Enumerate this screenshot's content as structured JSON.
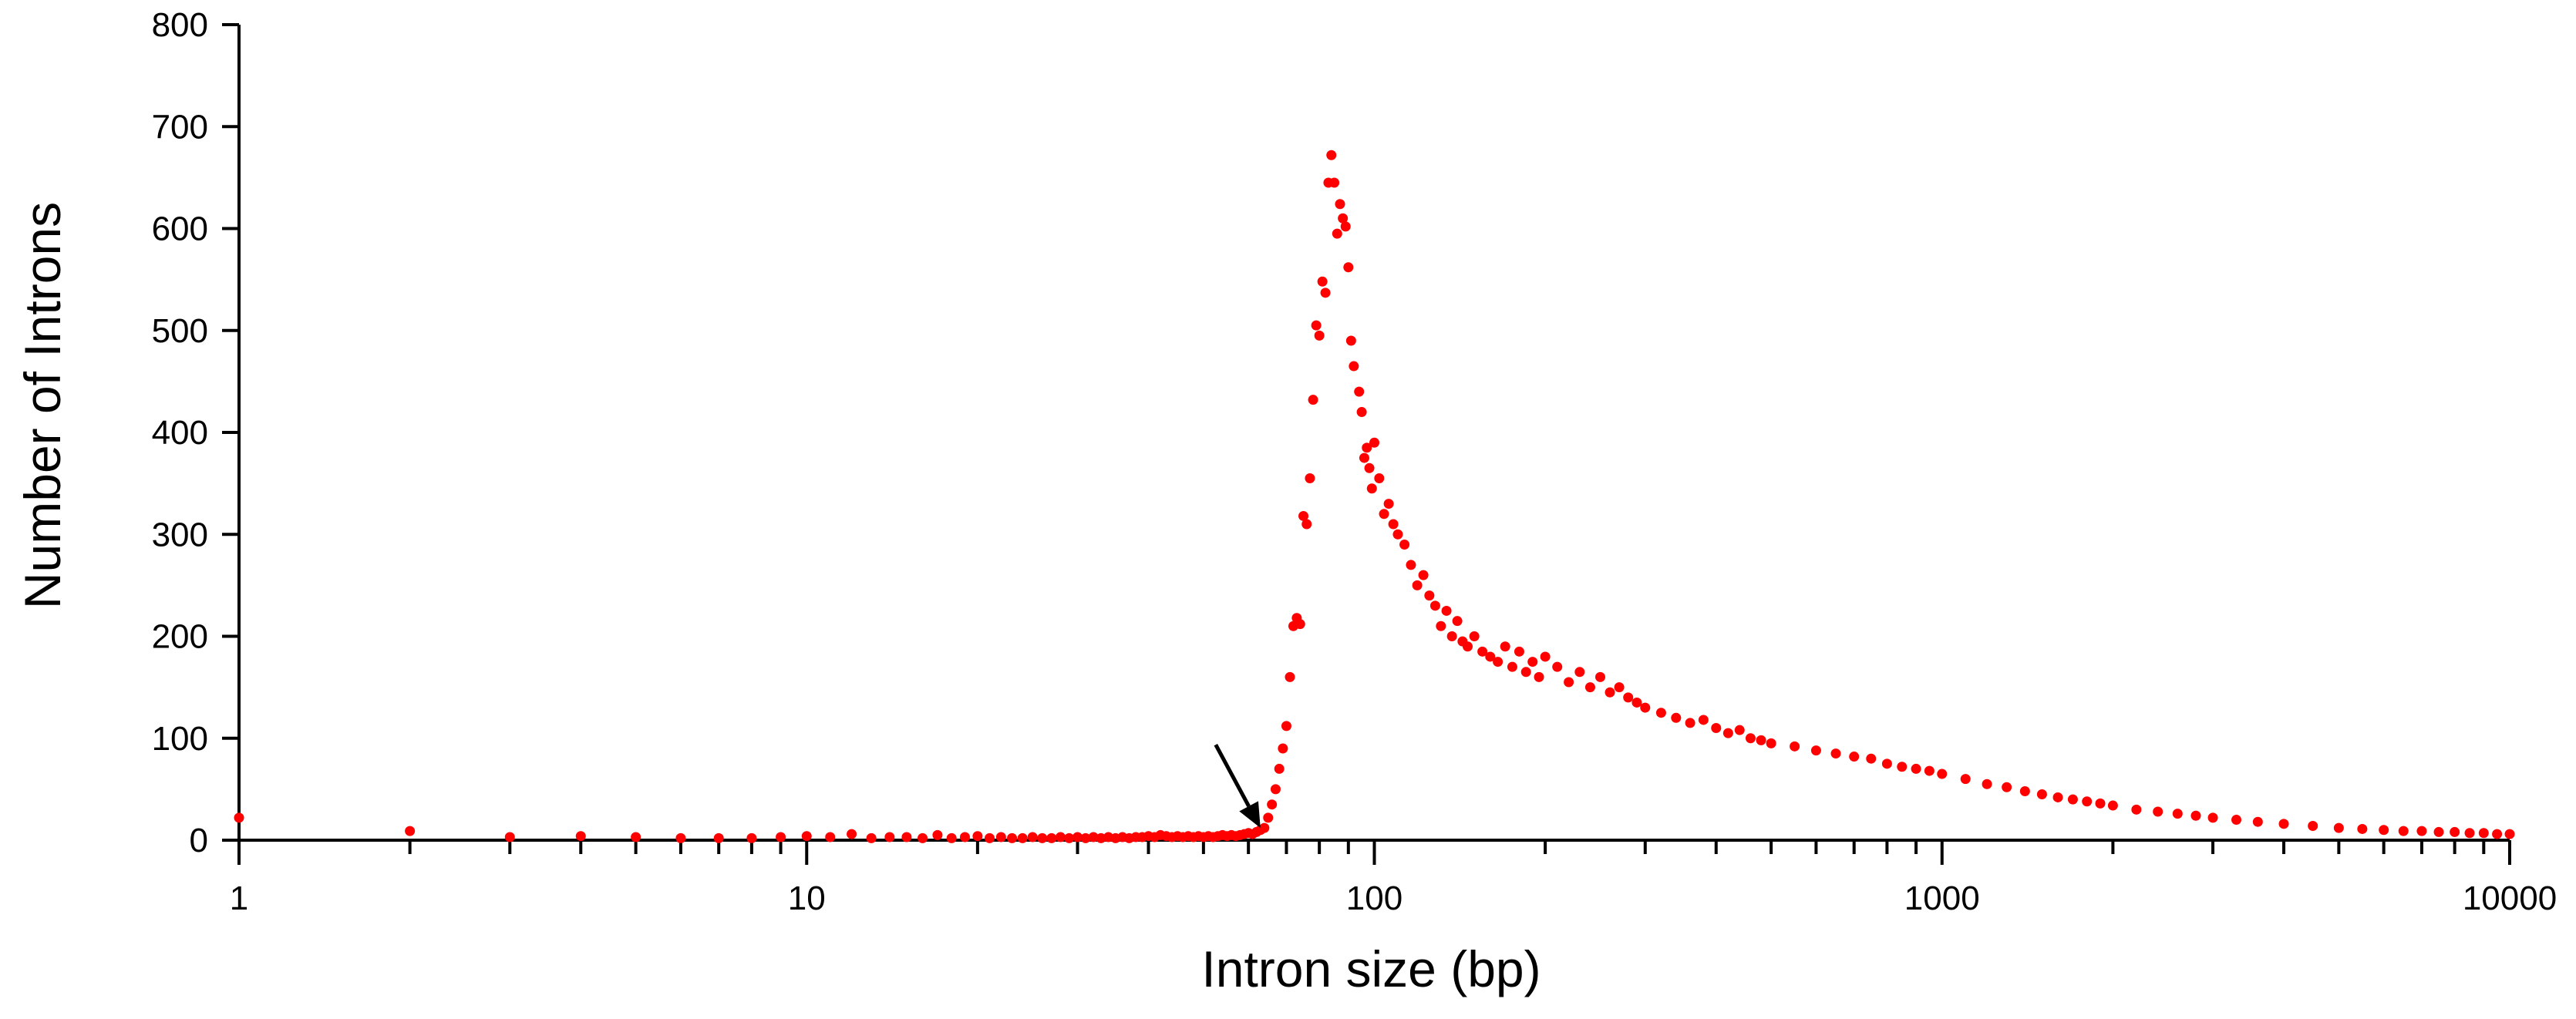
{
  "chart_data": {
    "type": "scatter",
    "xlabel": "Intron size (bp)",
    "ylabel": "Number of Introns",
    "xscale": "log",
    "xlim": [
      1,
      10000
    ],
    "ylim": [
      0,
      800
    ],
    "x_tick_labels": [
      "1",
      "10",
      "100",
      "1000",
      "10000"
    ],
    "y_tick_labels": [
      "0",
      "100",
      "200",
      "300",
      "400",
      "500",
      "600",
      "700",
      "800"
    ],
    "grid": false,
    "legend": "none",
    "point_color": "#ff0000",
    "annotation": "arrow pointing to x≈63, y≈10",
    "series": [
      {
        "points": [
          [
            1,
            22
          ],
          [
            2,
            9
          ],
          [
            3,
            3
          ],
          [
            4,
            4
          ],
          [
            5,
            3
          ],
          [
            6,
            2
          ],
          [
            7,
            2
          ],
          [
            8,
            2
          ],
          [
            9,
            3
          ],
          [
            10,
            4
          ],
          [
            11,
            3
          ],
          [
            12,
            6
          ],
          [
            13,
            2
          ],
          [
            14,
            3
          ],
          [
            15,
            3
          ],
          [
            16,
            2
          ],
          [
            17,
            5
          ],
          [
            18,
            2
          ],
          [
            19,
            3
          ],
          [
            20,
            4
          ],
          [
            21,
            2
          ],
          [
            22,
            3
          ],
          [
            23,
            2
          ],
          [
            24,
            2
          ],
          [
            25,
            3
          ],
          [
            26,
            2
          ],
          [
            27,
            2
          ],
          [
            28,
            3
          ],
          [
            29,
            2
          ],
          [
            30,
            3
          ],
          [
            31,
            2
          ],
          [
            32,
            3
          ],
          [
            33,
            2
          ],
          [
            34,
            3
          ],
          [
            35,
            2
          ],
          [
            36,
            3
          ],
          [
            37,
            2
          ],
          [
            38,
            3
          ],
          [
            39,
            3
          ],
          [
            40,
            4
          ],
          [
            41,
            3
          ],
          [
            42,
            5
          ],
          [
            43,
            4
          ],
          [
            44,
            3
          ],
          [
            45,
            4
          ],
          [
            46,
            3
          ],
          [
            47,
            4
          ],
          [
            48,
            3
          ],
          [
            49,
            4
          ],
          [
            50,
            3
          ],
          [
            51,
            4
          ],
          [
            52,
            3
          ],
          [
            53,
            4
          ],
          [
            54,
            5
          ],
          [
            55,
            4
          ],
          [
            56,
            5
          ],
          [
            57,
            4
          ],
          [
            58,
            5
          ],
          [
            59,
            6
          ],
          [
            60,
            7
          ],
          [
            61,
            6
          ],
          [
            62,
            8
          ],
          [
            63,
            10
          ],
          [
            64,
            12
          ],
          [
            65,
            22
          ],
          [
            66,
            35
          ],
          [
            67,
            50
          ],
          [
            68,
            70
          ],
          [
            69,
            90
          ],
          [
            70,
            112
          ],
          [
            71,
            160
          ],
          [
            72,
            210
          ],
          [
            73,
            218
          ],
          [
            74,
            212
          ],
          [
            75,
            318
          ],
          [
            76,
            310
          ],
          [
            77,
            355
          ],
          [
            78,
            432
          ],
          [
            79,
            505
          ],
          [
            80,
            495
          ],
          [
            81,
            548
          ],
          [
            82,
            537
          ],
          [
            83,
            645
          ],
          [
            84,
            672
          ],
          [
            85,
            645
          ],
          [
            86,
            595
          ],
          [
            87,
            624
          ],
          [
            88,
            610
          ],
          [
            89,
            602
          ],
          [
            90,
            562
          ],
          [
            91,
            490
          ],
          [
            92,
            465
          ],
          [
            94,
            440
          ],
          [
            95,
            420
          ],
          [
            96,
            375
          ],
          [
            97,
            385
          ],
          [
            98,
            365
          ],
          [
            99,
            345
          ],
          [
            100,
            390
          ],
          [
            102,
            355
          ],
          [
            104,
            320
          ],
          [
            106,
            330
          ],
          [
            108,
            310
          ],
          [
            110,
            300
          ],
          [
            113,
            290
          ],
          [
            116,
            270
          ],
          [
            119,
            250
          ],
          [
            122,
            260
          ],
          [
            125,
            240
          ],
          [
            128,
            230
          ],
          [
            131,
            210
          ],
          [
            134,
            225
          ],
          [
            137,
            200
          ],
          [
            140,
            215
          ],
          [
            143,
            195
          ],
          [
            146,
            190
          ],
          [
            150,
            200
          ],
          [
            155,
            185
          ],
          [
            160,
            180
          ],
          [
            165,
            175
          ],
          [
            170,
            190
          ],
          [
            175,
            170
          ],
          [
            180,
            185
          ],
          [
            185,
            165
          ],
          [
            190,
            175
          ],
          [
            195,
            160
          ],
          [
            200,
            180
          ],
          [
            210,
            170
          ],
          [
            220,
            155
          ],
          [
            230,
            165
          ],
          [
            240,
            150
          ],
          [
            250,
            160
          ],
          [
            260,
            145
          ],
          [
            270,
            150
          ],
          [
            280,
            140
          ],
          [
            290,
            135
          ],
          [
            300,
            130
          ],
          [
            320,
            125
          ],
          [
            340,
            120
          ],
          [
            360,
            115
          ],
          [
            380,
            118
          ],
          [
            400,
            110
          ],
          [
            420,
            105
          ],
          [
            440,
            108
          ],
          [
            460,
            100
          ],
          [
            480,
            98
          ],
          [
            500,
            95
          ],
          [
            550,
            92
          ],
          [
            600,
            88
          ],
          [
            650,
            85
          ],
          [
            700,
            82
          ],
          [
            750,
            80
          ],
          [
            800,
            75
          ],
          [
            850,
            72
          ],
          [
            900,
            70
          ],
          [
            950,
            68
          ],
          [
            1000,
            65
          ],
          [
            1100,
            60
          ],
          [
            1200,
            55
          ],
          [
            1300,
            52
          ],
          [
            1400,
            48
          ],
          [
            1500,
            45
          ],
          [
            1600,
            42
          ],
          [
            1700,
            40
          ],
          [
            1800,
            38
          ],
          [
            1900,
            36
          ],
          [
            2000,
            34
          ],
          [
            2200,
            30
          ],
          [
            2400,
            28
          ],
          [
            2600,
            26
          ],
          [
            2800,
            24
          ],
          [
            3000,
            22
          ],
          [
            3300,
            20
          ],
          [
            3600,
            18
          ],
          [
            4000,
            16
          ],
          [
            4500,
            14
          ],
          [
            5000,
            12
          ],
          [
            5500,
            11
          ],
          [
            6000,
            10
          ],
          [
            6500,
            9
          ],
          [
            7000,
            9
          ],
          [
            7500,
            8
          ],
          [
            8000,
            8
          ],
          [
            8500,
            7
          ],
          [
            9000,
            7
          ],
          [
            9500,
            6
          ],
          [
            10000,
            6
          ]
        ]
      }
    ]
  }
}
